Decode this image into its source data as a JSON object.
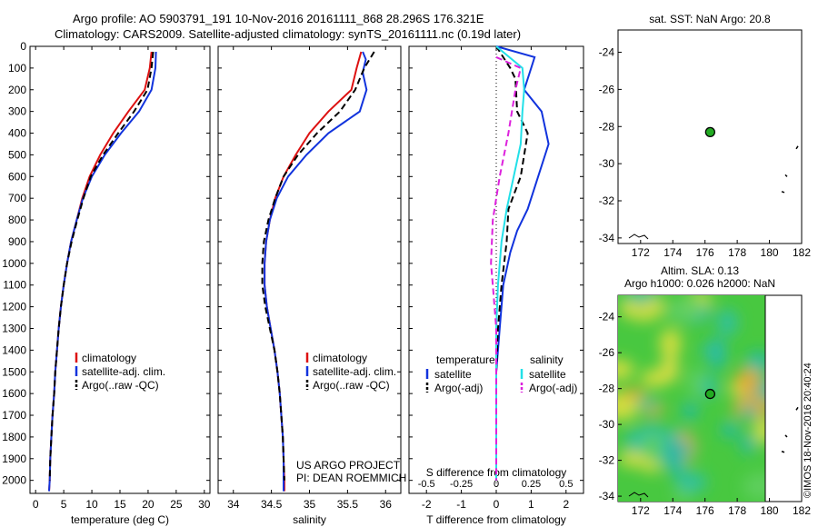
{
  "header": {
    "line1": "Argo profile: AO 5903791_191 10-Nov-2016 20161111_868 28.296S 176.321E",
    "line2": "Climatology: CARS2009. Satellite-adjusted climatology: synTS_20161111.nc (0.19d later)"
  },
  "credit": {
    "project": "US ARGO PROJECT",
    "pi": "PI: DEAN ROEMMICH"
  },
  "stamp": "©IMOS 18-Nov-2016 20:40:24",
  "colors": {
    "climatology": "#dd1111",
    "satellite": "#1133dd",
    "argo": "#000000",
    "salinity_sat": "#22e0e8",
    "salinity_argo": "#dd22dd",
    "map_frame": "#000000",
    "float_marker": "#22aa22"
  },
  "chart_data": [
    {
      "type": "line",
      "xlabel": "temperature (deg C)",
      "ylabel": "",
      "xlim": [
        -1,
        31
      ],
      "ylim": [
        2060,
        0
      ],
      "xticks": [
        0,
        5,
        10,
        15,
        20,
        25,
        30
      ],
      "yticks": [
        0,
        100,
        200,
        300,
        400,
        500,
        600,
        700,
        800,
        900,
        1000,
        1100,
        1200,
        1300,
        1400,
        1500,
        1600,
        1700,
        1800,
        1900,
        2000
      ],
      "legend": [
        "climatology",
        "satellite-adj. clim.",
        "Argo(..raw -QC)"
      ],
      "series": [
        {
          "name": "climatology",
          "style": "solid",
          "color": "#dd1111",
          "points": [
            [
              20.6,
              25
            ],
            [
              20.3,
              100
            ],
            [
              19.4,
              200
            ],
            [
              16.5,
              300
            ],
            [
              13.8,
              400
            ],
            [
              11.5,
              500
            ],
            [
              9.6,
              600
            ],
            [
              8.3,
              700
            ],
            [
              7.3,
              800
            ],
            [
              6.3,
              900
            ],
            [
              5.6,
              1000
            ],
            [
              5.0,
              1100
            ],
            [
              4.5,
              1200
            ],
            [
              4.1,
              1300
            ],
            [
              3.8,
              1400
            ],
            [
              3.5,
              1500
            ],
            [
              3.3,
              1600
            ],
            [
              3.0,
              1700
            ],
            [
              2.8,
              1800
            ],
            [
              2.6,
              1900
            ],
            [
              2.5,
              2000
            ],
            [
              2.4,
              2050
            ]
          ]
        },
        {
          "name": "satellite-adj. clim.",
          "style": "solid",
          "color": "#1133dd",
          "points": [
            [
              21.4,
              25
            ],
            [
              21.3,
              100
            ],
            [
              20.6,
              200
            ],
            [
              18.4,
              300
            ],
            [
              15.2,
              400
            ],
            [
              12.3,
              500
            ],
            [
              10.0,
              600
            ],
            [
              8.4,
              700
            ],
            [
              7.3,
              800
            ],
            [
              6.3,
              900
            ],
            [
              5.6,
              1000
            ],
            [
              5.0,
              1100
            ],
            [
              4.5,
              1200
            ],
            [
              4.1,
              1300
            ],
            [
              3.8,
              1400
            ],
            [
              3.5,
              1500
            ],
            [
              3.3,
              1600
            ],
            [
              3.0,
              1700
            ],
            [
              2.8,
              1800
            ],
            [
              2.6,
              1900
            ],
            [
              2.5,
              2000
            ],
            [
              2.4,
              2050
            ]
          ]
        },
        {
          "name": "Argo(..raw -QC)",
          "style": "dash",
          "color": "#000000",
          "points": [
            [
              20.9,
              25
            ],
            [
              20.6,
              100
            ],
            [
              19.9,
              200
            ],
            [
              17.5,
              300
            ],
            [
              14.7,
              400
            ],
            [
              12.0,
              500
            ],
            [
              9.8,
              600
            ],
            [
              8.5,
              700
            ],
            [
              7.4,
              800
            ],
            [
              6.4,
              900
            ],
            [
              5.6,
              1000
            ],
            [
              5.0,
              1100
            ],
            [
              4.5,
              1200
            ],
            [
              4.1,
              1300
            ],
            [
              3.8,
              1400
            ],
            [
              3.5,
              1500
            ],
            [
              3.3,
              1600
            ],
            [
              3.0,
              1700
            ],
            [
              2.8,
              1800
            ],
            [
              2.6,
              1900
            ],
            [
              2.5,
              2000
            ]
          ]
        }
      ]
    },
    {
      "type": "line",
      "xlabel": "salinity",
      "xlim": [
        33.8,
        36.2
      ],
      "ylim": [
        2060,
        0
      ],
      "xticks": [
        34,
        34.5,
        35,
        35.5,
        36
      ],
      "legend": [
        "climatology",
        "satellite-adj. clim.",
        "Argo(..raw -QC)"
      ],
      "series": [
        {
          "name": "climatology",
          "style": "solid",
          "color": "#dd1111",
          "points": [
            [
              35.68,
              25
            ],
            [
              35.62,
              100
            ],
            [
              35.55,
              200
            ],
            [
              35.25,
              300
            ],
            [
              35.0,
              400
            ],
            [
              34.82,
              500
            ],
            [
              34.66,
              600
            ],
            [
              34.55,
              700
            ],
            [
              34.48,
              800
            ],
            [
              34.43,
              900
            ],
            [
              34.41,
              1000
            ],
            [
              34.41,
              1100
            ],
            [
              34.44,
              1200
            ],
            [
              34.49,
              1300
            ],
            [
              34.54,
              1400
            ],
            [
              34.58,
              1500
            ],
            [
              34.61,
              1600
            ],
            [
              34.63,
              1700
            ],
            [
              34.65,
              1800
            ],
            [
              34.66,
              1900
            ],
            [
              34.67,
              2000
            ],
            [
              34.67,
              2050
            ]
          ]
        },
        {
          "name": "satellite-adj. clim.",
          "style": "solid",
          "color": "#1133dd",
          "points": [
            [
              35.7,
              25
            ],
            [
              35.74,
              60
            ],
            [
              35.7,
              120
            ],
            [
              35.75,
              200
            ],
            [
              35.66,
              300
            ],
            [
              35.25,
              400
            ],
            [
              34.96,
              500
            ],
            [
              34.72,
              600
            ],
            [
              34.57,
              700
            ],
            [
              34.48,
              800
            ],
            [
              34.43,
              900
            ],
            [
              34.41,
              1000
            ],
            [
              34.41,
              1100
            ],
            [
              34.44,
              1200
            ],
            [
              34.49,
              1300
            ],
            [
              34.54,
              1400
            ],
            [
              34.58,
              1500
            ],
            [
              34.61,
              1600
            ],
            [
              34.63,
              1700
            ],
            [
              34.65,
              1800
            ],
            [
              34.66,
              1900
            ],
            [
              34.66,
              2000
            ],
            [
              34.66,
              2050
            ]
          ]
        },
        {
          "name": "Argo(..raw -QC)",
          "style": "dash",
          "color": "#000000",
          "points": [
            [
              35.85,
              25
            ],
            [
              35.72,
              100
            ],
            [
              35.6,
              200
            ],
            [
              35.4,
              300
            ],
            [
              35.1,
              400
            ],
            [
              34.85,
              500
            ],
            [
              34.66,
              600
            ],
            [
              34.55,
              700
            ],
            [
              34.46,
              800
            ],
            [
              34.4,
              900
            ],
            [
              34.38,
              1000
            ],
            [
              34.38,
              1100
            ],
            [
              34.42,
              1200
            ],
            [
              34.48,
              1300
            ],
            [
              34.54,
              1400
            ],
            [
              34.58,
              1500
            ],
            [
              34.61,
              1600
            ],
            [
              34.63,
              1700
            ],
            [
              34.65,
              1800
            ],
            [
              34.66,
              1900
            ],
            [
              34.67,
              2000
            ]
          ]
        }
      ]
    },
    {
      "type": "line",
      "xlabel": "T difference from climatology",
      "xlabel_top": "S difference from climatology",
      "xlim": [
        -2.5,
        2.5
      ],
      "ylim": [
        2060,
        0
      ],
      "xticks": [
        -2,
        -1,
        0,
        1,
        2
      ],
      "xticks_s": [
        -0.5,
        -0.25,
        0,
        0.25,
        0.5
      ],
      "legend": [
        "temperature",
        "salinity",
        "satellite",
        "Argo(-adj)",
        "satellite",
        "Argo(-adj)"
      ],
      "series": [
        {
          "name": "satellite",
          "group": "temperature",
          "style": "solid",
          "color": "#1133dd",
          "points": [
            [
              0,
              0
            ],
            [
              1.1,
              50
            ],
            [
              1.0,
              100
            ],
            [
              0.8,
              200
            ],
            [
              1.3,
              300
            ],
            [
              1.5,
              450
            ],
            [
              1.2,
              600
            ],
            [
              0.9,
              750
            ],
            [
              0.6,
              850
            ],
            [
              0.4,
              950
            ],
            [
              0.2,
              1100
            ],
            [
              0.1,
              1300
            ],
            [
              0,
              1500
            ],
            [
              0,
              2000
            ]
          ]
        },
        {
          "name": "Argo(-adj)",
          "group": "temperature",
          "style": "dash",
          "color": "#000000",
          "points": [
            [
              0,
              0
            ],
            [
              0.4,
              100
            ],
            [
              0.55,
              150
            ],
            [
              0.6,
              300
            ],
            [
              0.9,
              400
            ],
            [
              0.7,
              600
            ],
            [
              0.35,
              750
            ],
            [
              0.3,
              900
            ],
            [
              0.15,
              1100
            ],
            [
              0.05,
              1300
            ],
            [
              0,
              1500
            ],
            [
              0,
              2000
            ]
          ]
        },
        {
          "name": "satellite",
          "group": "salinity",
          "style": "solid",
          "color": "#22e0e8",
          "points": [
            [
              0,
              0
            ],
            [
              0.75,
              100
            ],
            [
              0.8,
              200
            ],
            [
              0.75,
              300
            ],
            [
              0.7,
              450
            ],
            [
              0.5,
              600
            ],
            [
              0.3,
              750
            ],
            [
              0.15,
              900
            ],
            [
              0.05,
              1100
            ],
            [
              0,
              1300
            ],
            [
              0,
              2000
            ]
          ]
        },
        {
          "name": "Argo(-adj)",
          "group": "salinity",
          "style": "dash",
          "color": "#dd22dd",
          "points": [
            [
              0,
              50
            ],
            [
              0.7,
              100
            ],
            [
              0.55,
              200
            ],
            [
              0.35,
              400
            ],
            [
              0.1,
              600
            ],
            [
              -0.1,
              800
            ],
            [
              -0.15,
              1000
            ],
            [
              -0.1,
              1100
            ],
            [
              0,
              1300
            ],
            [
              0,
              2000
            ]
          ]
        }
      ]
    },
    {
      "type": "scatter",
      "title": "sat. SST: NaN Argo: 20.8",
      "xlim": [
        170.6,
        182
      ],
      "ylim": [
        -34.3,
        -22.8
      ],
      "xticks": [
        172,
        174,
        176,
        178,
        180,
        182
      ],
      "yticks": [
        -24,
        -26,
        -28,
        -30,
        -32,
        -34
      ],
      "points": [
        [
          176.32,
          -28.3
        ]
      ]
    },
    {
      "type": "heatmap",
      "title_line1": "Altim. SLA: 0.13",
      "title_line2": "Argo h1000: 0.026 h2000: NaN",
      "xlim": [
        170.6,
        182
      ],
      "ylim": [
        -34.3,
        -22.8
      ],
      "xticks": [
        172,
        174,
        176,
        178,
        180,
        182
      ],
      "yticks": [
        -24,
        -26,
        -28,
        -30,
        -32,
        -34
      ],
      "points": [
        [
          176.32,
          -28.3
        ]
      ]
    }
  ]
}
